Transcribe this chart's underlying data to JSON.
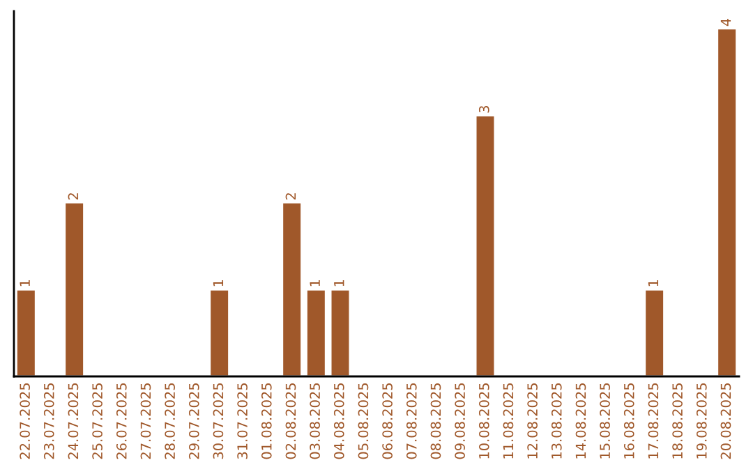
{
  "chart_data": {
    "type": "bar",
    "categories": [
      "22.07.2025",
      "23.07.2025",
      "24.07.2025",
      "25.07.2025",
      "26.07.2025",
      "27.07.2025",
      "28.07.2025",
      "29.07.2025",
      "30.07.2025",
      "31.07.2025",
      "01.08.2025",
      "02.08.2025",
      "03.08.2025",
      "04.08.2025",
      "05.08.2025",
      "06.08.2025",
      "07.08.2025",
      "08.08.2025",
      "09.08.2025",
      "10.08.2025",
      "11.08.2025",
      "12.08.2025",
      "13.08.2025",
      "14.08.2025",
      "15.08.2025",
      "16.08.2025",
      "17.08.2025",
      "18.08.2025",
      "19.08.2025",
      "20.08.2025"
    ],
    "values": [
      1,
      null,
      2,
      null,
      null,
      null,
      null,
      null,
      1,
      null,
      null,
      2,
      1,
      1,
      null,
      null,
      null,
      null,
      null,
      3,
      null,
      null,
      null,
      null,
      null,
      null,
      1,
      null,
      null,
      4
    ],
    "value_labels": [
      "1",
      null,
      "2",
      null,
      null,
      null,
      null,
      null,
      "1",
      null,
      null,
      "2",
      "1",
      "1",
      null,
      null,
      null,
      null,
      null,
      "3",
      null,
      null,
      null,
      null,
      null,
      null,
      "1",
      null,
      null,
      "4"
    ],
    "color": "#a0582a",
    "grid": false,
    "legend": false
  }
}
